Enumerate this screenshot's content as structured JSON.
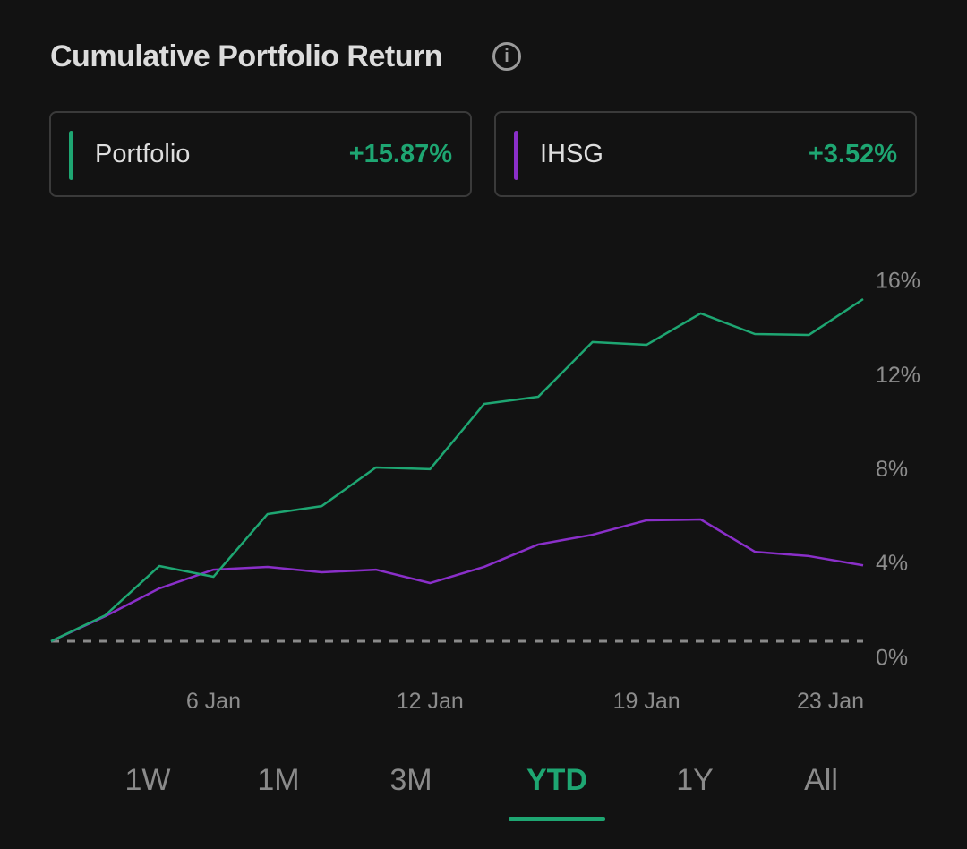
{
  "header": {
    "title": "Cumulative Portfolio Return",
    "info_icon": "info-icon"
  },
  "legend": [
    {
      "name": "Portfolio",
      "value": "+15.87%",
      "color": "#1ea672"
    },
    {
      "name": "IHSG",
      "value": "+3.52%",
      "color": "#8a2fc9"
    }
  ],
  "periods": [
    {
      "label": "1W",
      "active": false
    },
    {
      "label": "1M",
      "active": false
    },
    {
      "label": "3M",
      "active": false
    },
    {
      "label": "YTD",
      "active": true
    },
    {
      "label": "1Y",
      "active": false
    },
    {
      "label": "All",
      "active": false
    }
  ],
  "chart_data": {
    "type": "line",
    "title": "Cumulative Portfolio Return",
    "x_count": 16,
    "x_ticks": [
      {
        "index": 3,
        "label": "6 Jan"
      },
      {
        "index": 7,
        "label": "12 Jan"
      },
      {
        "index": 11,
        "label": "19 Jan"
      },
      {
        "index": 15,
        "label": "23 Jan"
      }
    ],
    "y_ticks": [
      {
        "value": 16,
        "label": "16%"
      },
      {
        "value": 12,
        "label": "12%"
      },
      {
        "value": 8,
        "label": "8%"
      },
      {
        "value": 4,
        "label": "4%"
      },
      {
        "value": 0,
        "label": "0%"
      }
    ],
    "ylim": [
      0,
      16
    ],
    "baseline": 0,
    "series": [
      {
        "name": "Portfolio",
        "color": "#1ea672",
        "values": [
          0,
          1.2,
          3.49,
          2.99,
          5.9,
          6.27,
          8.06,
          7.98,
          11.01,
          11.34,
          13.88,
          13.75,
          15.21,
          14.25,
          14.21,
          15.87
        ]
      },
      {
        "name": "IHSG",
        "color": "#8a2fc9",
        "values": [
          0,
          1.16,
          2.45,
          3.32,
          3.45,
          3.2,
          3.32,
          2.7,
          3.45,
          4.49,
          4.94,
          5.61,
          5.65,
          4.15,
          3.95,
          3.52
        ]
      }
    ]
  }
}
